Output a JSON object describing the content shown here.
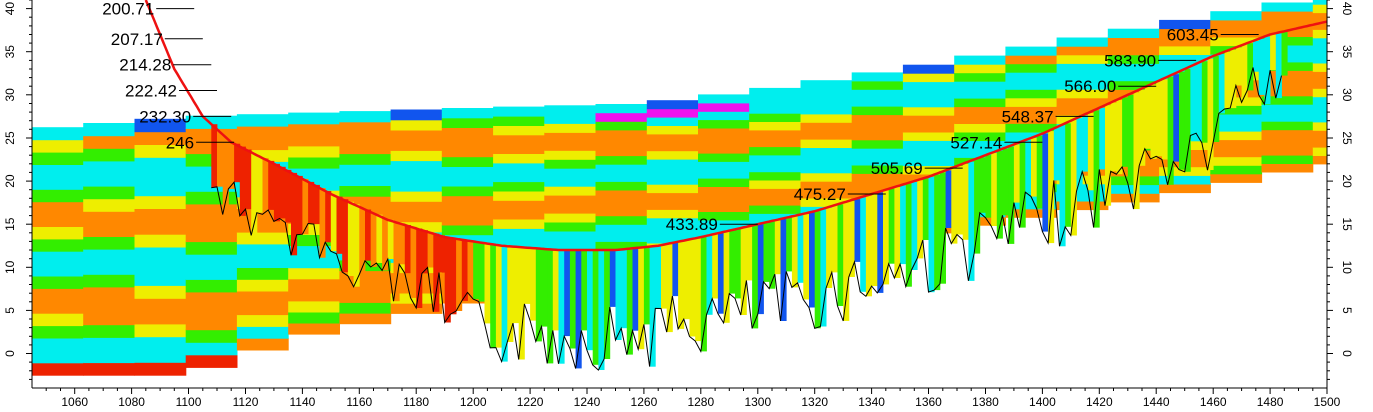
{
  "chart_data": {
    "type": "line",
    "title": "",
    "xlabel": "",
    "ylabel": "",
    "xlim": [
      1045,
      1500
    ],
    "ylim": [
      -4,
      41
    ],
    "x_ticks": [
      1060,
      1080,
      1100,
      1120,
      1140,
      1160,
      1180,
      1200,
      1220,
      1240,
      1260,
      1280,
      1300,
      1320,
      1340,
      1360,
      1380,
      1400,
      1420,
      1440,
      1460,
      1480,
      1500
    ],
    "y_ticks": [
      0,
      5,
      10,
      15,
      20,
      25,
      30,
      35,
      40
    ],
    "grid": false,
    "colors": {
      "curve": "#ee1111",
      "red": "#ee2200",
      "orange": "#ff8800",
      "yellow": "#eeee00",
      "green": "#33ee00",
      "cyan": "#00eeee",
      "blue": "#1155ee",
      "magenta": "#ee11ee"
    },
    "curve": {
      "x": [
        1085,
        1095,
        1105,
        1115,
        1130,
        1150,
        1170,
        1190,
        1210,
        1230,
        1250,
        1265,
        1280,
        1300,
        1320,
        1340,
        1360,
        1380,
        1400,
        1420,
        1440,
        1460,
        1480,
        1500
      ],
      "y": [
        41,
        33,
        27.5,
        24.5,
        22,
        18.5,
        15.5,
        13.5,
        12.5,
        12.0,
        12.0,
        12.5,
        13.5,
        15.0,
        16.5,
        18.5,
        20.5,
        23.0,
        25.5,
        28.5,
        31.5,
        34.5,
        37.0,
        38.5
      ]
    },
    "annotations": [
      {
        "label": "200.71",
        "x": 1102,
        "y": 40.0
      },
      {
        "label": "207.17",
        "x": 1105,
        "y": 36.5
      },
      {
        "label": "214.28",
        "x": 1108,
        "y": 33.5
      },
      {
        "label": "222.42",
        "x": 1110,
        "y": 30.5
      },
      {
        "label": "232.30",
        "x": 1115,
        "y": 27.5
      },
      {
        "label": "246",
        "x": 1116,
        "y": 24.5
      },
      {
        "label": "433.89",
        "x": 1300,
        "y": 15.0
      },
      {
        "label": "475.27",
        "x": 1345,
        "y": 18.5
      },
      {
        "label": "505.69",
        "x": 1372,
        "y": 21.5
      },
      {
        "label": "527.14",
        "x": 1400,
        "y": 24.5
      },
      {
        "label": "548.37",
        "x": 1418,
        "y": 27.5
      },
      {
        "label": "566.00",
        "x": 1440,
        "y": 31.0
      },
      {
        "label": "583.90",
        "x": 1454,
        "y": 34.0
      },
      {
        "label": "603.45",
        "x": 1476,
        "y": 37.0
      }
    ]
  }
}
